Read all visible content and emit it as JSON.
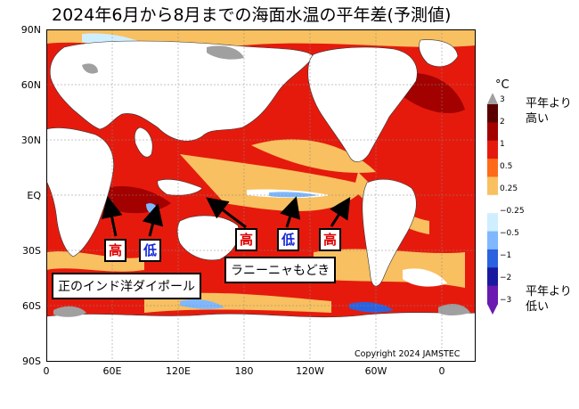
{
  "title": "2024年6月から8月までの海面水温の平年差(予測値)",
  "axes": {
    "y_ticks": [
      "90N",
      "60N",
      "30N",
      "EQ",
      "30S",
      "60S",
      "90S"
    ],
    "x_ticks": [
      "0",
      "60E",
      "120E",
      "180",
      "120W",
      "60W",
      "0"
    ]
  },
  "copyright": "Copyright 2024 JAMSTEC",
  "legend": {
    "unit": "°C",
    "ticks": [
      "3",
      "2",
      "1",
      "0.5",
      "0.25",
      "−0.25",
      "−0.5",
      "−1",
      "−2",
      "−3"
    ],
    "colors": [
      "#5a0000",
      "#a30000",
      "#e51a0d",
      "#ff6a1a",
      "#f8c060",
      "#ffffff",
      "#cfeeff",
      "#7fb8ff",
      "#2b62e0",
      "#1a1aa0",
      "#6a1ab0"
    ],
    "high_label": "平年より\n高い",
    "low_label": "平年より\n低い"
  },
  "annotations": {
    "tag_high_1": "高",
    "tag_low_1": "低",
    "tag_high_2": "高",
    "tag_low_2": "低",
    "tag_high_3": "高",
    "iod_label": "正のインド洋ダイポール",
    "lanina_label": "ラニーニャもどき"
  },
  "colors": {
    "land": "#ffffff",
    "ice": "#a0a0a0",
    "warm_strong": "#e51a0d",
    "warm_mild": "#f8c060",
    "cool": "#7fb8ff"
  }
}
